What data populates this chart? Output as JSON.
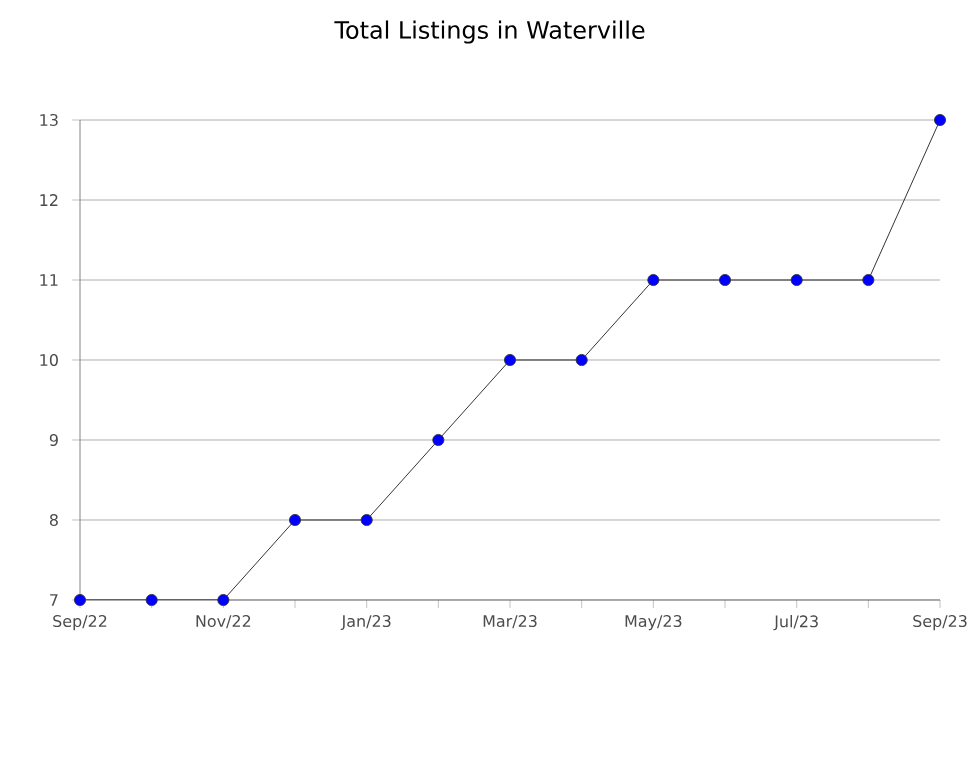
{
  "chart_data": {
    "type": "line",
    "title": "Total Listings in Waterville",
    "categories": [
      "Sep/22",
      null,
      "Nov/22",
      null,
      "Jan/23",
      null,
      "Mar/23",
      null,
      "May/23",
      null,
      "Jul/23",
      null,
      "Sep/23"
    ],
    "series": [
      {
        "color": "#0000ff",
        "values": [
          7,
          7,
          7,
          8,
          8,
          9,
          10,
          10,
          11,
          11,
          11,
          11,
          13
        ]
      }
    ],
    "ylim": [
      7,
      13
    ],
    "yticks": [
      7,
      8,
      9,
      10,
      11,
      12,
      13
    ],
    "grid": "y",
    "marker": "circle",
    "line_style": "solid"
  }
}
